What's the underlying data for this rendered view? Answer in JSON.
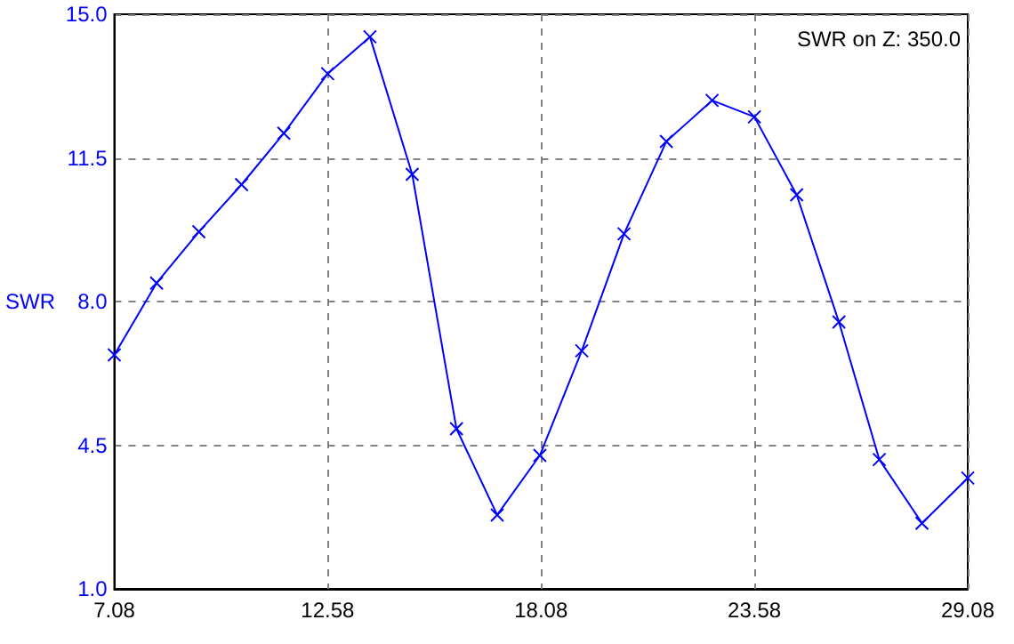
{
  "chart_data": {
    "type": "line",
    "ylabel": "SWR",
    "annotations": [
      "SWR on Z: 350.0"
    ],
    "x": [
      7.08,
      8.17,
      9.26,
      10.36,
      11.45,
      12.58,
      13.67,
      14.76,
      15.9,
      16.95,
      18.05,
      19.13,
      20.22,
      21.31,
      22.49,
      23.58,
      24.67,
      25.76,
      26.8,
      27.9,
      29.08
    ],
    "series": [
      {
        "color": "#0000ff",
        "values": [
          6.7,
          8.45,
          9.7,
          10.85,
          12.1,
          13.55,
          14.45,
          11.1,
          4.9,
          2.8,
          4.25,
          6.8,
          9.65,
          11.9,
          12.9,
          12.5,
          10.6,
          7.5,
          4.15,
          2.6,
          3.7
        ]
      }
    ],
    "xlim": [
      7.08,
      29.08
    ],
    "xticks": [
      7.08,
      12.58,
      18.08,
      23.58,
      29.08
    ],
    "ylim": [
      1,
      15
    ],
    "yticks": [
      {
        "value": 1,
        "label": "1.0"
      },
      {
        "value": 4.5,
        "label": "4.5"
      },
      {
        "value": 8,
        "label": "8.0"
      },
      {
        "value": 11.5,
        "label": "11.5"
      },
      {
        "value": 15,
        "label": "15.0"
      }
    ],
    "grid": true,
    "marker": "cross",
    "line_style": "solid"
  }
}
